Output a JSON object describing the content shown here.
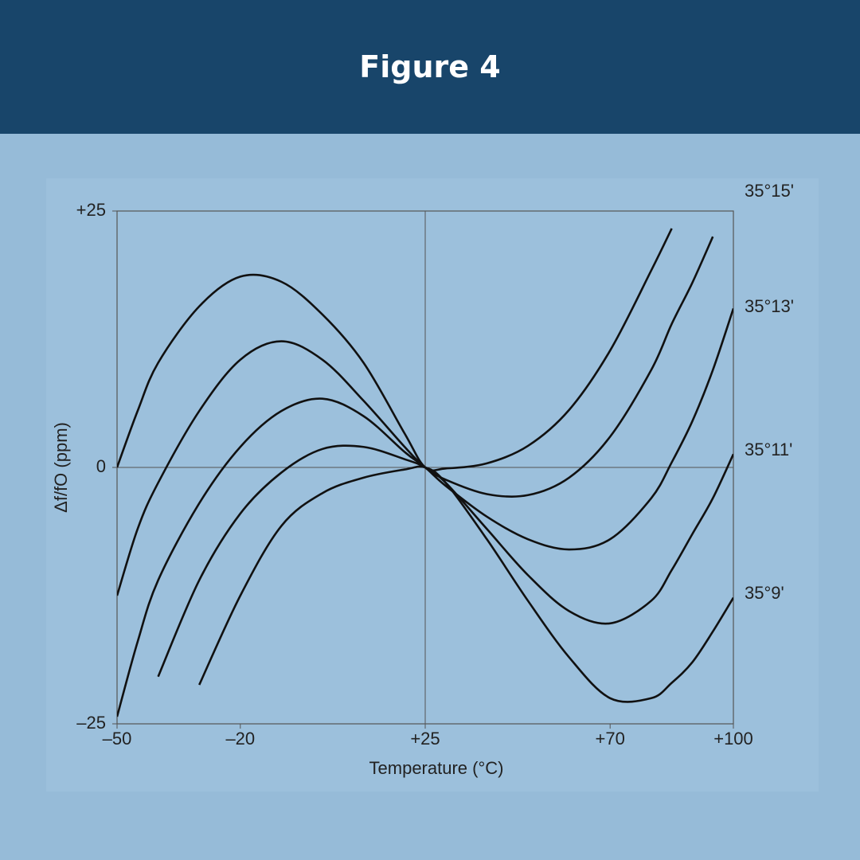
{
  "chart_data": {
    "type": "line",
    "title": "Figure 4",
    "xlabel": "Temperature (°C)",
    "ylabel": "Δf/fO (ppm)",
    "x": [
      -50,
      -45,
      -40,
      -30,
      -20,
      -10,
      0,
      10,
      20,
      25,
      30,
      40,
      50,
      60,
      70,
      80,
      85,
      90,
      95,
      100
    ],
    "series": [
      {
        "color": "#111111",
        "values": [
          0,
          5.5,
          10.2,
          15.7,
          18.6,
          18.1,
          14.9,
          10.2,
          3.3,
          0,
          -0.1,
          0.4,
          2.1,
          5.6,
          11.4,
          19.2,
          23.3,
          null,
          null,
          null
        ]
      },
      {
        "name": "35°15'",
        "color": "#111111",
        "values": [
          -12.5,
          -6,
          -1.5,
          5.5,
          10.5,
          12.3,
          10.5,
          6.5,
          2,
          0,
          -1.2,
          -2.6,
          -2.7,
          -1,
          3,
          9.5,
          14,
          18,
          22.5,
          null
        ]
      },
      {
        "name": "35°13'",
        "color": "#111111",
        "values": [
          -24.3,
          -17,
          -11,
          -3.5,
          2,
          5.5,
          6.7,
          5,
          1.5,
          0,
          -1.8,
          -4.8,
          -7,
          -8,
          -7,
          -3,
          0.5,
          4.5,
          9.5,
          15.5
        ]
      },
      {
        "name": "35°11'",
        "color": "#111111",
        "values": [
          null,
          null,
          -20.4,
          -11,
          -4.5,
          -0.5,
          1.8,
          2,
          0.8,
          0,
          -1.5,
          -6,
          -10.5,
          -14,
          -15.2,
          -13,
          -10,
          -6.5,
          -3,
          1.3
        ]
      },
      {
        "name": "35°9'",
        "color": "#111111",
        "values": [
          null,
          null,
          null,
          -21.2,
          -12.5,
          -5.7,
          -2.5,
          -1,
          -0.2,
          0,
          -1.5,
          -7,
          -13,
          -18.5,
          -22.5,
          -22.5,
          -21,
          -19,
          -16,
          -12.7
        ]
      }
    ],
    "xlim": [
      -50,
      100
    ],
    "xticks": [
      {
        "value": -50,
        "label": "–50"
      },
      {
        "value": -20,
        "label": "–20"
      },
      {
        "value": 25,
        "label": "+25"
      },
      {
        "value": 70,
        "label": "+70"
      },
      {
        "value": 100,
        "label": "+100"
      }
    ],
    "ylim": [
      -25,
      25
    ],
    "yticks": [
      {
        "value": -25,
        "label": "–25"
      },
      0,
      {
        "value": 25,
        "label": "+25"
      }
    ],
    "grid": false
  }
}
